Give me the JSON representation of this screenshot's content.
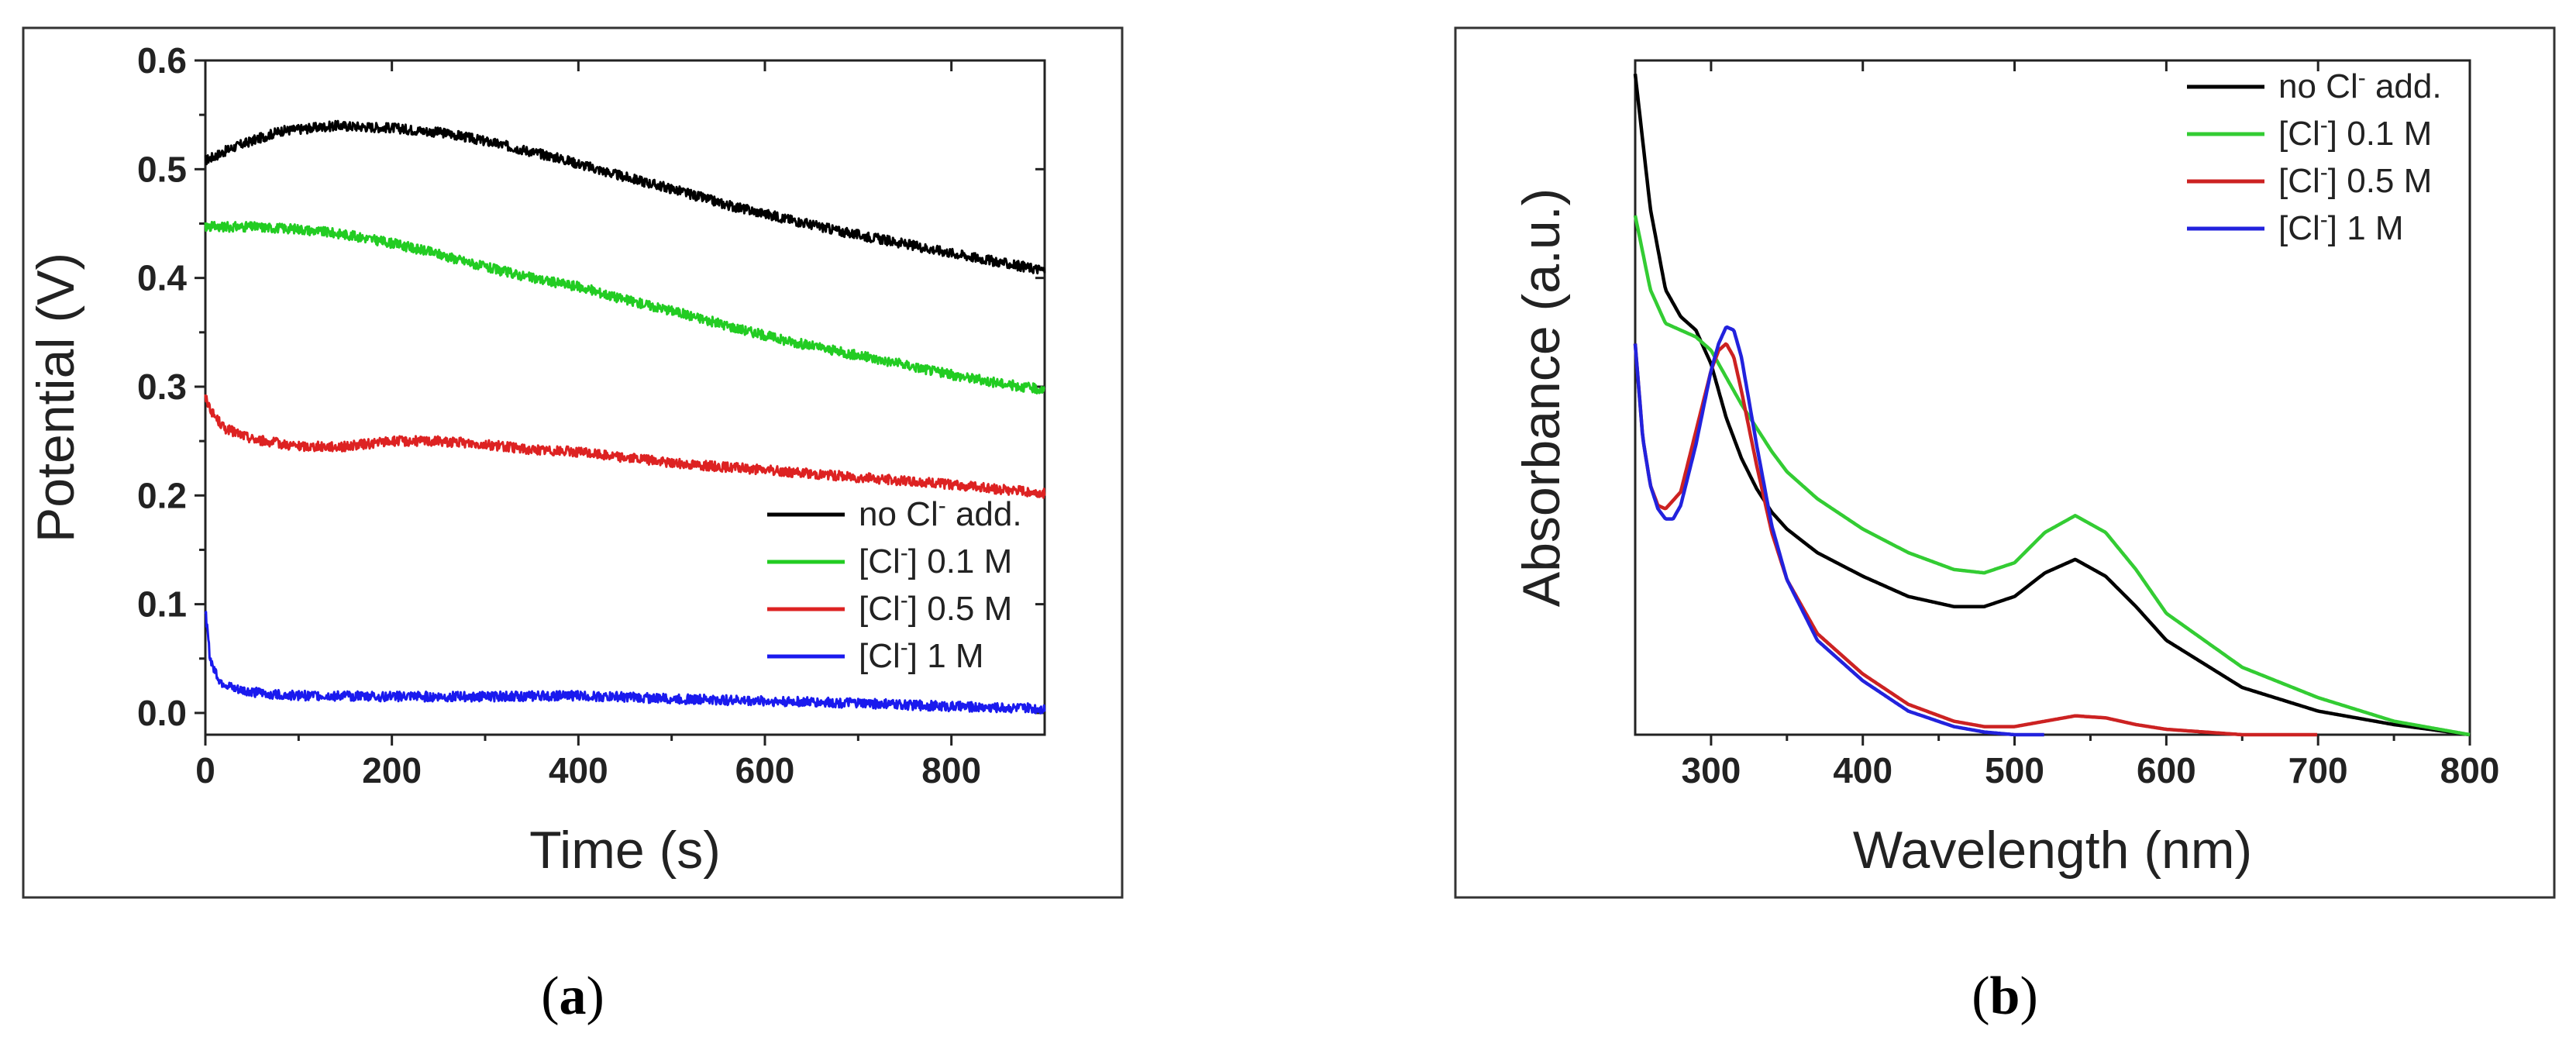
{
  "panels": [
    {
      "label_open": "(",
      "label_letter": "a",
      "label_close": ")",
      "chart_data": {
        "type": "line",
        "title": "",
        "xlabel": "Time (s)",
        "ylabel": "Potential (V)",
        "xlim": [
          0,
          900
        ],
        "ylim": [
          -0.02,
          0.6
        ],
        "xticks": [
          0,
          200,
          400,
          600,
          800
        ],
        "xtick_labels": [
          "0",
          "200",
          "400",
          "600",
          "800"
        ],
        "yticks": [
          0.0,
          0.1,
          0.2,
          0.3,
          0.4,
          0.5,
          0.6
        ],
        "ytick_labels": [
          "0.0",
          "0.1",
          "0.2",
          "0.3",
          "0.4",
          "0.5",
          "0.6"
        ],
        "legend_position": "lower-right",
        "noise": 0.0045,
        "series": [
          {
            "name": "no Cl",
            "sup": "-",
            "suffix": " add.",
            "color": "#000000",
            "x": [
              0,
              30,
              80,
              140,
              200,
              260,
              320,
              380,
              440,
              500,
              560,
              620,
              680,
              740,
              800,
              860,
              900
            ],
            "y": [
              0.508,
              0.52,
              0.535,
              0.54,
              0.538,
              0.533,
              0.522,
              0.51,
              0.495,
              0.482,
              0.467,
              0.455,
              0.443,
              0.433,
              0.423,
              0.413,
              0.407
            ]
          },
          {
            "name": "[Cl",
            "sup": "-",
            "suffix": "] 0.1 M",
            "color": "#22cc22",
            "x": [
              0,
              50,
              100,
              150,
              200,
              250,
              300,
              350,
              400,
              450,
              500,
              560,
              620,
              680,
              740,
              800,
              860,
              900
            ],
            "y": [
              0.447,
              0.447,
              0.445,
              0.44,
              0.432,
              0.422,
              0.41,
              0.4,
              0.392,
              0.38,
              0.37,
              0.356,
              0.343,
              0.332,
              0.322,
              0.311,
              0.302,
              0.297
            ]
          },
          {
            "name": "[Cl",
            "sup": "-",
            "suffix": "] 0.5 M",
            "color": "#dd2222",
            "x": [
              0,
              8,
              20,
              50,
              100,
              150,
              200,
              250,
              300,
              350,
              400,
              450,
              500,
              560,
              620,
              680,
              740,
              800,
              860,
              900
            ],
            "y": [
              0.29,
              0.275,
              0.262,
              0.252,
              0.245,
              0.245,
              0.25,
              0.25,
              0.247,
              0.242,
              0.24,
              0.235,
              0.23,
              0.226,
              0.222,
              0.218,
              0.214,
              0.21,
              0.205,
              0.202
            ]
          },
          {
            "name": "[Cl",
            "sup": "-",
            "suffix": "] 1 M",
            "color": "#1a1aee",
            "x": [
              0,
              5,
              15,
              30,
              60,
              100,
              200,
              300,
              400,
              500,
              600,
              700,
              800,
              900
            ],
            "y": [
              0.095,
              0.05,
              0.03,
              0.022,
              0.018,
              0.016,
              0.015,
              0.015,
              0.016,
              0.013,
              0.011,
              0.009,
              0.006,
              0.004
            ]
          }
        ]
      }
    },
    {
      "label_open": "(",
      "label_letter": "b",
      "label_close": ")",
      "chart_data": {
        "type": "line",
        "title": "",
        "xlabel": "Wavelength (nm)",
        "ylabel": "Absorbance (a.u.)",
        "xlim": [
          250,
          800
        ],
        "ylim": [
          0,
          1.0
        ],
        "xticks": [
          300,
          400,
          500,
          600,
          700,
          800
        ],
        "xtick_labels": [
          "300",
          "400",
          "500",
          "600",
          "700",
          "800"
        ],
        "yticks": [],
        "ytick_labels": [],
        "legend_position": "top-right",
        "noise": 0,
        "series": [
          {
            "name": "no Cl",
            "sup": "-",
            "suffix": " add.",
            "color": "#000000",
            "x": [
              250,
              260,
              270,
              280,
              290,
              300,
              310,
              320,
              330,
              340,
              350,
              370,
              400,
              430,
              460,
              480,
              500,
              520,
              540,
              560,
              580,
              600,
              650,
              700,
              750,
              800
            ],
            "y": [
              0.98,
              0.78,
              0.66,
              0.62,
              0.6,
              0.55,
              0.47,
              0.41,
              0.365,
              0.33,
              0.305,
              0.27,
              0.235,
              0.205,
              0.19,
              0.19,
              0.205,
              0.24,
              0.26,
              0.235,
              0.19,
              0.14,
              0.07,
              0.035,
              0.015,
              0.0
            ]
          },
          {
            "name": "[Cl",
            "sup": "-",
            "suffix": "] 0.1 M",
            "color": "#33cc33",
            "x": [
              250,
              260,
              270,
              280,
              290,
              300,
              310,
              320,
              330,
              340,
              350,
              370,
              400,
              430,
              460,
              480,
              500,
              520,
              540,
              560,
              580,
              600,
              650,
              700,
              750,
              800
            ],
            "y": [
              0.77,
              0.66,
              0.61,
              0.6,
              0.59,
              0.57,
              0.53,
              0.49,
              0.455,
              0.42,
              0.39,
              0.35,
              0.305,
              0.27,
              0.245,
              0.24,
              0.255,
              0.3,
              0.325,
              0.3,
              0.245,
              0.18,
              0.1,
              0.055,
              0.02,
              0.0
            ]
          },
          {
            "name": "[Cl",
            "sup": "-",
            "suffix": "] 0.5 M",
            "color": "#cc2222",
            "x": [
              250,
              255,
              260,
              265,
              270,
              280,
              290,
              300,
              305,
              310,
              315,
              320,
              330,
              340,
              350,
              370,
              400,
              430,
              460,
              480,
              500,
              520,
              540,
              560,
              580,
              600,
              650,
              700
            ],
            "y": [
              0.58,
              0.44,
              0.37,
              0.34,
              0.335,
              0.36,
              0.45,
              0.54,
              0.57,
              0.58,
              0.56,
              0.51,
              0.4,
              0.3,
              0.23,
              0.15,
              0.09,
              0.045,
              0.02,
              0.012,
              0.012,
              0.02,
              0.028,
              0.025,
              0.015,
              0.008,
              0.0,
              0.0
            ]
          },
          {
            "name": "[Cl",
            "sup": "-",
            "suffix": "] 1 M",
            "color": "#2222dd",
            "x": [
              250,
              255,
              260,
              265,
              270,
              275,
              280,
              290,
              300,
              305,
              310,
              315,
              320,
              330,
              340,
              350,
              370,
              400,
              430,
              460,
              480,
              500,
              520
            ],
            "y": [
              0.58,
              0.44,
              0.37,
              0.335,
              0.32,
              0.32,
              0.34,
              0.43,
              0.54,
              0.58,
              0.605,
              0.6,
              0.56,
              0.43,
              0.31,
              0.23,
              0.14,
              0.08,
              0.035,
              0.012,
              0.004,
              0.0,
              0.0
            ]
          }
        ]
      }
    }
  ]
}
